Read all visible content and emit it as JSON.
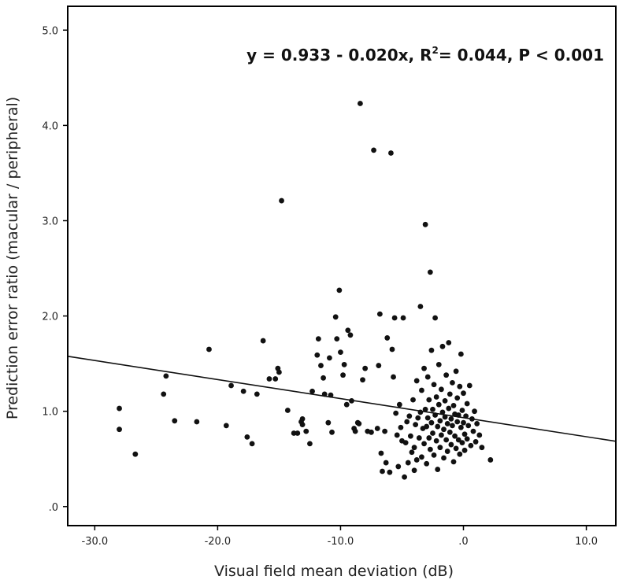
{
  "chart_data": {
    "type": "scatter",
    "xlabel": "Visual field mean deviation (dB)",
    "ylabel": "Prediction error ratio (macular / peripheral)",
    "xlim": [
      -32.2,
      12.4
    ],
    "ylim": [
      -0.2,
      5.25
    ],
    "x_ticks": [
      -30,
      -20,
      -10,
      0,
      10
    ],
    "x_tick_labels": [
      "-30.0",
      "-20.0",
      "-10.0",
      ".0",
      "10.0"
    ],
    "y_ticks": [
      0,
      1,
      2,
      3,
      4,
      5
    ],
    "y_tick_labels": [
      ".0",
      "1.0",
      "2.0",
      "3.0",
      "4.0",
      "5.0"
    ],
    "grid": false,
    "annotation": {
      "text_main": "y = 0.933 - 0.020x, R",
      "superscript": "2",
      "text_rest": "= 0.044, P < 0.001"
    },
    "fit_line": {
      "intercept": 0.933,
      "slope": -0.02
    },
    "points": [
      [
        -28,
        1.03
      ],
      [
        -28,
        0.81
      ],
      [
        -26.7,
        0.55
      ],
      [
        -24.4,
        1.18
      ],
      [
        -24.2,
        1.37
      ],
      [
        -23.5,
        0.9
      ],
      [
        -21.7,
        0.89
      ],
      [
        -20.7,
        1.65
      ],
      [
        -19.3,
        0.85
      ],
      [
        -18.9,
        1.27
      ],
      [
        -17.9,
        1.21
      ],
      [
        -17.6,
        0.73
      ],
      [
        -17.2,
        0.66
      ],
      [
        -16.8,
        1.18
      ],
      [
        -16.3,
        1.74
      ],
      [
        -15.8,
        1.34
      ],
      [
        -15.3,
        1.34
      ],
      [
        -15.1,
        1.45
      ],
      [
        -15,
        1.41
      ],
      [
        -14.8,
        3.21
      ],
      [
        -14.3,
        1.01
      ],
      [
        -13.8,
        0.77
      ],
      [
        -13.5,
        0.77
      ],
      [
        -13.2,
        0.89
      ],
      [
        -13.1,
        0.86
      ],
      [
        -13.1,
        0.92
      ],
      [
        -12.8,
        0.79
      ],
      [
        -12.5,
        0.66
      ],
      [
        -12.3,
        1.21
      ],
      [
        -11.9,
        1.59
      ],
      [
        -11.8,
        1.76
      ],
      [
        -11.6,
        1.48
      ],
      [
        -11.4,
        1.35
      ],
      [
        -11.3,
        1.18
      ],
      [
        -11,
        0.88
      ],
      [
        -10.9,
        1.56
      ],
      [
        -10.8,
        1.17
      ],
      [
        -10.7,
        0.78
      ],
      [
        -10.4,
        1.99
      ],
      [
        -10.3,
        1.76
      ],
      [
        -10.1,
        2.27
      ],
      [
        -10,
        1.62
      ],
      [
        -9.8,
        1.38
      ],
      [
        -9.7,
        1.49
      ],
      [
        -9.5,
        1.07
      ],
      [
        -9.4,
        1.85
      ],
      [
        -9.2,
        1.8
      ],
      [
        -9.1,
        1.11
      ],
      [
        -8.9,
        0.82
      ],
      [
        -8.8,
        0.79
      ],
      [
        -8.6,
        0.88
      ],
      [
        -8.5,
        0.87
      ],
      [
        -8.4,
        4.23
      ],
      [
        -8.2,
        1.33
      ],
      [
        -8,
        1.45
      ],
      [
        -7.8,
        0.79
      ],
      [
        -7.5,
        0.78
      ],
      [
        -7.3,
        3.74
      ],
      [
        -7,
        0.82
      ],
      [
        -6.9,
        1.48
      ],
      [
        -6.8,
        2.02
      ],
      [
        -6.7,
        0.56
      ],
      [
        -6.6,
        0.37
      ],
      [
        -6.4,
        0.79
      ],
      [
        -6.3,
        0.46
      ],
      [
        -6.2,
        1.77
      ],
      [
        -6,
        0.36
      ],
      [
        -5.9,
        3.71
      ],
      [
        -5.8,
        1.65
      ],
      [
        -5.7,
        1.36
      ],
      [
        -5.6,
        1.98
      ],
      [
        -5.5,
        0.98
      ],
      [
        -5.4,
        0.75
      ],
      [
        -5.3,
        0.42
      ],
      [
        -5.2,
        1.07
      ],
      [
        -5.1,
        0.83
      ],
      [
        -5,
        0.69
      ],
      [
        -4.9,
        1.98
      ],
      [
        -4.8,
        0.31
      ],
      [
        -4.7,
        0.67
      ],
      [
        -4.6,
        0.89
      ],
      [
        -4.5,
        0.46
      ],
      [
        -4.4,
        0.95
      ],
      [
        -4.3,
        0.74
      ],
      [
        -4.2,
        0.57
      ],
      [
        -4.1,
        1.12
      ],
      [
        -4,
        0.38
      ],
      [
        -4,
        0.62
      ],
      [
        -3.9,
        0.86
      ],
      [
        -3.8,
        0.49
      ],
      [
        -3.8,
        1.32
      ],
      [
        -3.7,
        0.93
      ],
      [
        -3.6,
        0.72
      ],
      [
        -3.5,
        2.1
      ],
      [
        -3.5,
        0.99
      ],
      [
        -3.4,
        0.52
      ],
      [
        -3.4,
        1.22
      ],
      [
        -3.3,
        0.82
      ],
      [
        -3.2,
        0.66
      ],
      [
        -3.2,
        1.45
      ],
      [
        -3.1,
        1.02
      ],
      [
        -3.1,
        2.96
      ],
      [
        -3,
        0.84
      ],
      [
        -3,
        0.45
      ],
      [
        -2.9,
        0.93
      ],
      [
        -2.9,
        1.36
      ],
      [
        -2.8,
        0.72
      ],
      [
        -2.8,
        1.12
      ],
      [
        -2.7,
        0.6
      ],
      [
        -2.7,
        2.46
      ],
      [
        -2.6,
        0.88
      ],
      [
        -2.6,
        1.64
      ],
      [
        -2.5,
        0.77
      ],
      [
        -2.5,
        1.02
      ],
      [
        -2.4,
        0.54
      ],
      [
        -2.4,
        1.28
      ],
      [
        -2.3,
        0.96
      ],
      [
        -2.3,
        1.98
      ],
      [
        -2.2,
        0.69
      ],
      [
        -2.2,
        1.15
      ],
      [
        -2.1,
        0.84
      ],
      [
        -2.1,
        0.39
      ],
      [
        -2,
        1.07
      ],
      [
        -2,
        1.49
      ],
      [
        -1.9,
        0.62
      ],
      [
        -1.9,
        0.9
      ],
      [
        -1.8,
        1.23
      ],
      [
        -1.8,
        0.75
      ],
      [
        -1.7,
        0.99
      ],
      [
        -1.7,
        1.68
      ],
      [
        -1.6,
        0.81
      ],
      [
        -1.6,
        0.51
      ],
      [
        -1.5,
        1.11
      ],
      [
        -1.5,
        0.94
      ],
      [
        -1.4,
        0.7
      ],
      [
        -1.4,
        1.38
      ],
      [
        -1.3,
        0.87
      ],
      [
        -1.3,
        0.58
      ],
      [
        -1.2,
        1.03
      ],
      [
        -1.2,
        1.72
      ],
      [
        -1.1,
        0.78
      ],
      [
        -1.1,
        1.18
      ],
      [
        -1,
        0.92
      ],
      [
        -1,
        0.65
      ],
      [
        -0.9,
        1.3
      ],
      [
        -0.9,
        0.85
      ],
      [
        -0.8,
        0.47
      ],
      [
        -0.8,
        1.06
      ],
      [
        -0.7,
        0.74
      ],
      [
        -0.7,
        0.97
      ],
      [
        -0.6,
        1.42
      ],
      [
        -0.6,
        0.61
      ],
      [
        -0.5,
        0.89
      ],
      [
        -0.5,
        1.14
      ],
      [
        -0.4,
        0.7
      ],
      [
        -0.4,
        0.96
      ],
      [
        -0.3,
        1.26
      ],
      [
        -0.3,
        0.55
      ],
      [
        -0.2,
        0.83
      ],
      [
        -0.2,
        1.6
      ],
      [
        -0.1,
        1.01
      ],
      [
        -0.1,
        0.67
      ],
      [
        0,
        0.88
      ],
      [
        0,
        1.19
      ],
      [
        0.1,
        0.76
      ],
      [
        0.1,
        0.59
      ],
      [
        0.2,
        0.95
      ],
      [
        0.3,
        1.08
      ],
      [
        0.3,
        0.71
      ],
      [
        0.4,
        0.85
      ],
      [
        0.5,
        1.27
      ],
      [
        0.6,
        0.64
      ],
      [
        0.7,
        0.92
      ],
      [
        0.8,
        0.79
      ],
      [
        0.9,
        1.0
      ],
      [
        1,
        0.68
      ],
      [
        1.1,
        0.87
      ],
      [
        1.3,
        0.75
      ],
      [
        1.5,
        0.62
      ],
      [
        2.2,
        0.49
      ]
    ]
  }
}
